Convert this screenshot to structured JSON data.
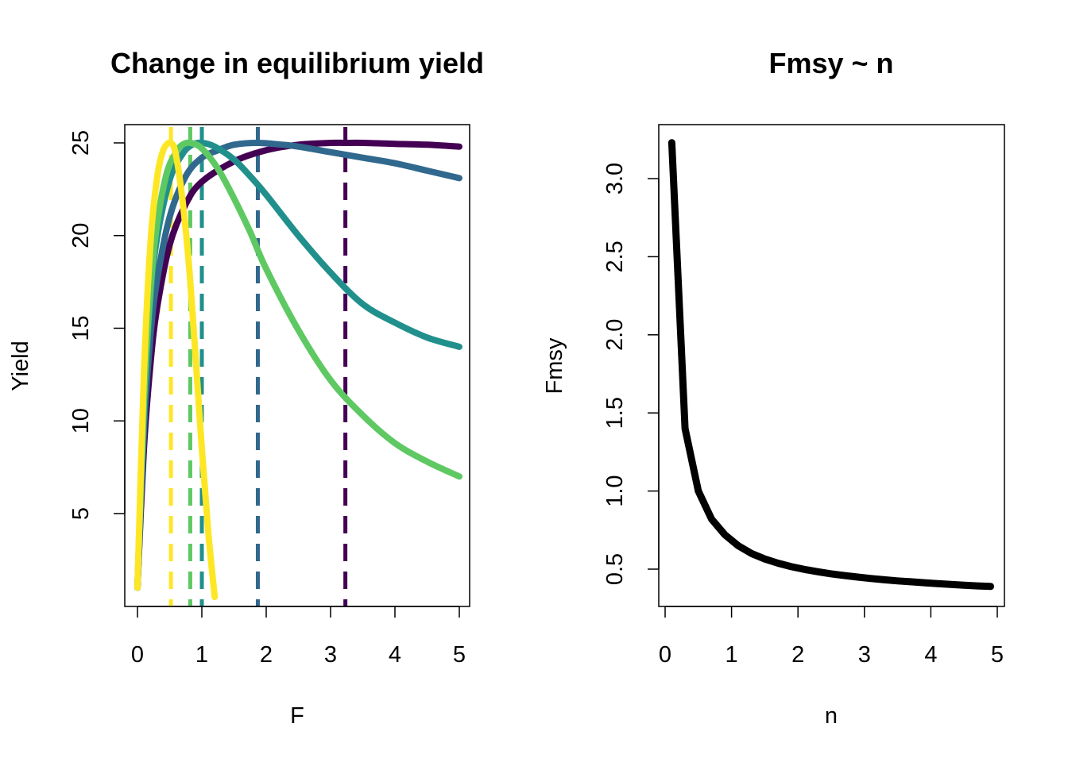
{
  "chart_data": [
    {
      "type": "line",
      "title": "Change in equilibrium yield",
      "xlabel": "F",
      "ylabel": "Yield",
      "xlim": [
        0,
        5
      ],
      "ylim": [
        0,
        25.5
      ],
      "x_ticks": [
        "0",
        "1",
        "2",
        "3",
        "4",
        "5"
      ],
      "y_ticks": [
        "5",
        "10",
        "15",
        "20",
        "25"
      ],
      "grid": false,
      "legend": "none",
      "series": [
        {
          "color": "#440154",
          "fmsy": 3.23,
          "x": [
            0,
            0.1,
            0.2,
            0.3,
            0.5,
            0.75,
            1.0,
            1.5,
            2.0,
            2.5,
            3.0,
            3.23,
            3.5,
            4.0,
            4.5,
            5.0
          ],
          "y": [
            1.0,
            8.5,
            13.0,
            16.0,
            19.5,
            21.7,
            22.9,
            24.0,
            24.6,
            24.9,
            25.0,
            25.0,
            25.0,
            24.95,
            24.9,
            24.8
          ]
        },
        {
          "color": "#31688e",
          "fmsy": 1.87,
          "x": [
            0,
            0.1,
            0.2,
            0.3,
            0.5,
            0.75,
            1.0,
            1.25,
            1.5,
            1.87,
            2.25,
            2.5,
            3.0,
            3.5,
            4.0,
            4.5,
            5.0
          ],
          "y": [
            1.0,
            9.5,
            14.5,
            17.5,
            21.0,
            23.2,
            24.2,
            24.6,
            24.9,
            25.0,
            24.9,
            24.8,
            24.5,
            24.2,
            23.9,
            23.5,
            23.1
          ]
        },
        {
          "color": "#21908c",
          "fmsy": 1.0,
          "x": [
            0,
            0.1,
            0.2,
            0.3,
            0.5,
            0.7,
            0.85,
            1.0,
            1.2,
            1.5,
            1.75,
            2.0,
            2.5,
            3.0,
            3.5,
            4.0,
            4.5,
            5.0
          ],
          "y": [
            1.0,
            10.5,
            16.5,
            19.8,
            23.0,
            24.4,
            24.9,
            25.0,
            24.8,
            24.1,
            23.2,
            22.2,
            20.0,
            18.0,
            16.3,
            15.3,
            14.5,
            14.0
          ]
        },
        {
          "color": "#5ec962",
          "fmsy": 0.82,
          "x": [
            0,
            0.1,
            0.2,
            0.3,
            0.45,
            0.6,
            0.7,
            0.82,
            1.0,
            1.25,
            1.5,
            1.75,
            2.0,
            2.5,
            3.0,
            3.5,
            4.0,
            4.5,
            5.0
          ],
          "y": [
            1.0,
            11.0,
            17.0,
            20.5,
            23.3,
            24.5,
            24.9,
            25.0,
            24.7,
            23.6,
            22.0,
            20.2,
            18.2,
            14.9,
            12.2,
            10.3,
            8.8,
            7.8,
            7.0
          ]
        },
        {
          "color": "#fde725",
          "fmsy": 0.52,
          "x": [
            0,
            0.1,
            0.2,
            0.3,
            0.4,
            0.52,
            0.6,
            0.7,
            0.8,
            0.9,
            1.0,
            1.1,
            1.2
          ],
          "y": [
            1.0,
            12.5,
            19.5,
            23.0,
            24.6,
            25.0,
            24.3,
            21.9,
            18.4,
            13.6,
            8.5,
            4.0,
            0.5
          ]
        }
      ]
    },
    {
      "type": "line",
      "title": "Fmsy ~ n",
      "xlabel": "n",
      "ylabel": "Fmsy",
      "xlim": [
        0,
        5
      ],
      "ylim": [
        0.3,
        3.3
      ],
      "x_ticks": [
        "0",
        "1",
        "2",
        "3",
        "4",
        "5"
      ],
      "y_ticks": [
        "0.5",
        "1.0",
        "1.5",
        "2.0",
        "2.5",
        "3.0"
      ],
      "grid": false,
      "legend": "none",
      "series": [
        {
          "color": "#000000",
          "x": [
            0.1,
            0.3,
            0.5,
            0.7,
            0.9,
            1.1,
            1.3,
            1.5,
            1.7,
            1.9,
            2.1,
            2.3,
            2.5,
            2.7,
            2.9,
            3.1,
            3.3,
            3.5,
            3.7,
            3.9,
            4.1,
            4.3,
            4.5,
            4.7,
            4.9
          ],
          "y": [
            3.23,
            1.4,
            1.0,
            0.82,
            0.72,
            0.65,
            0.6,
            0.565,
            0.538,
            0.516,
            0.498,
            0.483,
            0.47,
            0.459,
            0.449,
            0.44,
            0.432,
            0.425,
            0.419,
            0.413,
            0.407,
            0.402,
            0.397,
            0.393,
            0.389
          ]
        }
      ]
    }
  ]
}
